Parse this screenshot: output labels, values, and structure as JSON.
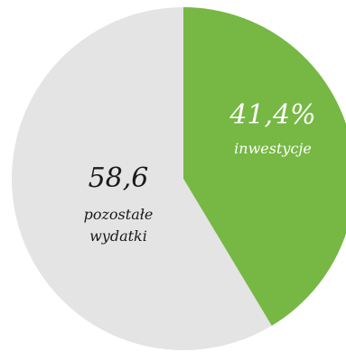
{
  "chart_data": {
    "type": "pie",
    "title": "",
    "slices": [
      {
        "value": 41.4,
        "value_label": "41,4%",
        "name_lines": [
          "inwestycje"
        ],
        "color": "#76b843",
        "text_color": "#ffffff"
      },
      {
        "value": 58.6,
        "value_label": "58,6",
        "name_lines": [
          "pozostałe",
          "wydatki"
        ],
        "color": "#e4e4e4",
        "text_color": "#1a1a1a"
      }
    ],
    "start": "12 o'clock",
    "direction": "clockwise",
    "legend": "none"
  }
}
